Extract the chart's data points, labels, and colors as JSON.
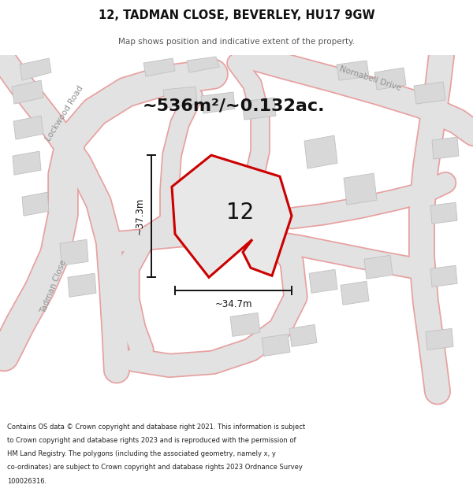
{
  "title_line1": "12, TADMAN CLOSE, BEVERLEY, HU17 9GW",
  "title_line2": "Map shows position and indicative extent of the property.",
  "area_text": "~536m²/~0.132ac.",
  "label_12": "12",
  "dim_width": "~34.7m",
  "dim_height": "~37.3m",
  "road_label_lockwood": "Lockwood Road",
  "road_label_nornabell": "Nornabell Drive",
  "road_label_tadman": "Tadman Close",
  "footer_lines": [
    "Contains OS data © Crown copyright and database right 2021. This information is subject",
    "to Crown copyright and database rights 2023 and is reproduced with the permission of",
    "HM Land Registry. The polygons (including the associated geometry, namely x, y",
    "co-ordinates) are subject to Crown copyright and database rights 2023 Ordnance Survey",
    "100026316."
  ],
  "map_bg": "#efefef",
  "road_fill": "#e2e2e2",
  "road_pink": "#e8a0a0",
  "bldg_fill": "#d8d8d8",
  "bldg_edge": "#c0c0c0",
  "prop_fill": "#e0e0e0",
  "prop_red": "#cc0000",
  "dim_color": "#111111",
  "text_dark": "#111111",
  "text_gray": "#909090",
  "footer_color": "#222222",
  "title_color": "#111111",
  "subtitle_color": "#555555"
}
